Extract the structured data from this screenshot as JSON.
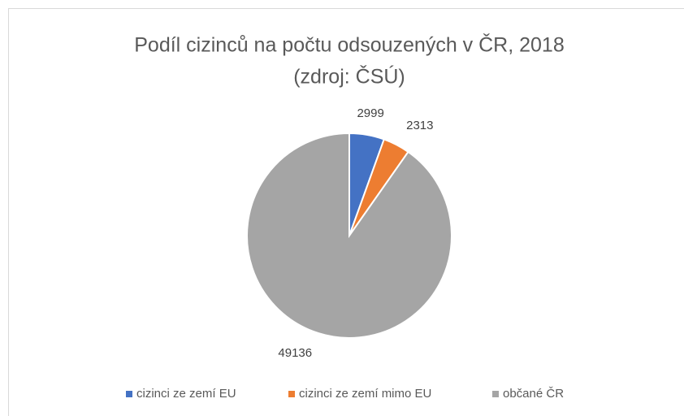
{
  "chart_data": {
    "type": "pie",
    "title": "Podíl cizinců na počtu odsouzených v ČR, 2018",
    "subtitle": "(zdroj: ČSÚ)",
    "series": [
      {
        "name": "cizinci ze zemí EU",
        "color": "#4472c4",
        "values": [
          2999
        ]
      },
      {
        "name": "cizinci ze zemí mimo EU",
        "color": "#ed7d31",
        "values": [
          2313
        ]
      },
      {
        "name": "občané ČR",
        "color": "#a5a5a5",
        "values": [
          49136
        ]
      }
    ],
    "legend": "bottom"
  }
}
